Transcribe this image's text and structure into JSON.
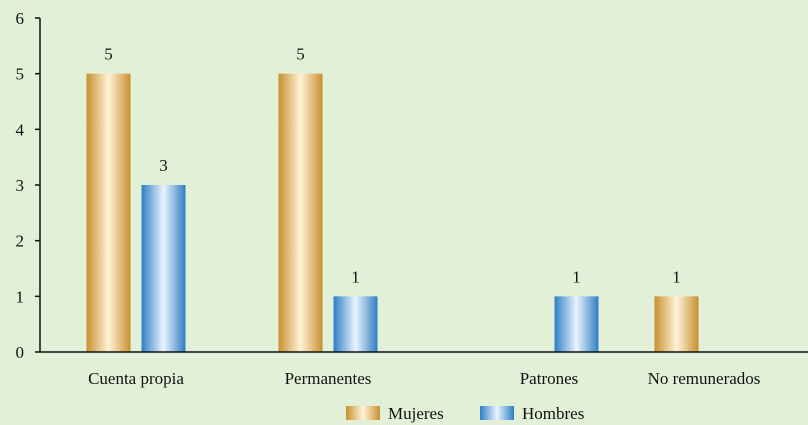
{
  "chart_data": {
    "type": "bar",
    "categories": [
      "Cuenta propia",
      "Permanentes",
      "Patrones",
      "No remunerados"
    ],
    "series": [
      {
        "name": "Mujeres",
        "values": [
          5,
          5,
          0,
          1
        ],
        "labels": [
          "5",
          "5",
          "",
          "1"
        ],
        "color": "#d9a843"
      },
      {
        "name": "Hombres",
        "values": [
          3,
          1,
          1,
          0
        ],
        "labels": [
          "3",
          "1",
          "1",
          ""
        ],
        "color": "#3f8fd0"
      }
    ],
    "ylim": [
      0,
      6
    ],
    "yticks": [
      "0",
      "1",
      "2",
      "3",
      "4",
      "5",
      "6"
    ],
    "grid": false,
    "legend": "bottom-center",
    "background": "#e3f0d8"
  }
}
